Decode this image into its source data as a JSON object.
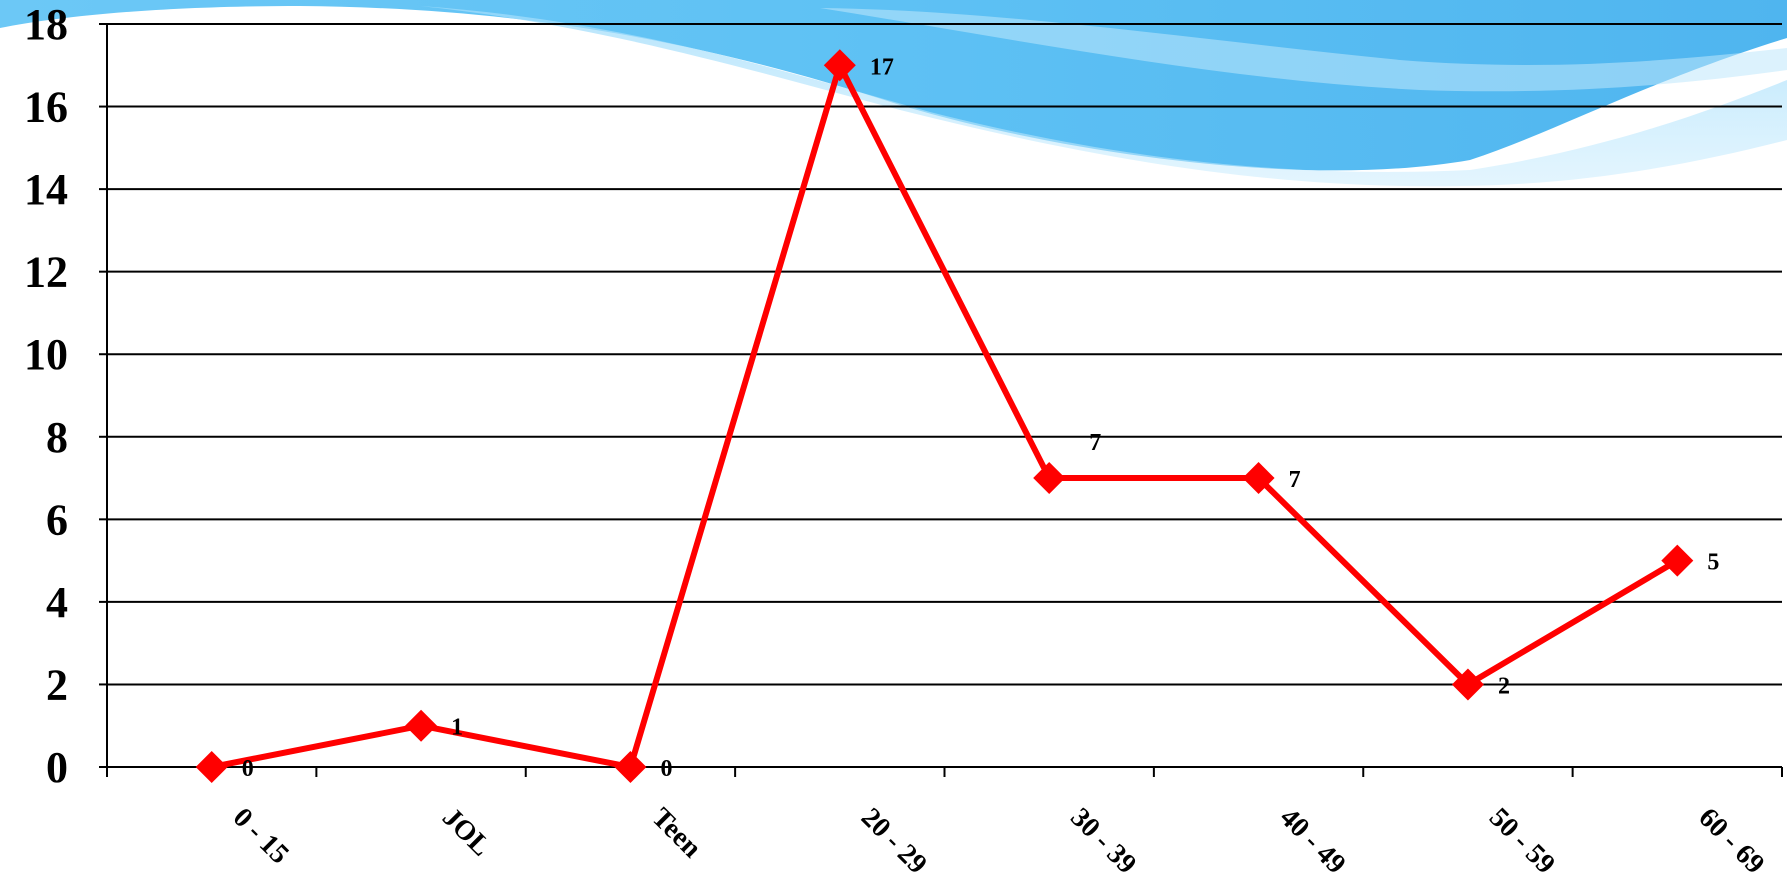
{
  "chart_data": {
    "type": "line",
    "categories": [
      "0 - 15",
      "JOL",
      "Teen",
      "20 - 29",
      "30 - 39",
      "40 - 49",
      "50 - 59",
      "60 - 69"
    ],
    "series": [
      {
        "values": [
          0,
          1,
          0,
          17,
          7,
          7,
          2,
          5
        ],
        "color": "#ff0000",
        "marker": "diamond"
      }
    ],
    "data_labels": [
      "0",
      "1",
      "0",
      "17",
      "7",
      "7",
      "2",
      "5"
    ],
    "yticks": [
      "0",
      "2",
      "4",
      "6",
      "8",
      "10",
      "12",
      "14",
      "16",
      "18"
    ],
    "ylim": [
      0,
      18
    ],
    "grid": true,
    "legend": "none",
    "title": "",
    "xlabel": "",
    "ylabel": ""
  }
}
